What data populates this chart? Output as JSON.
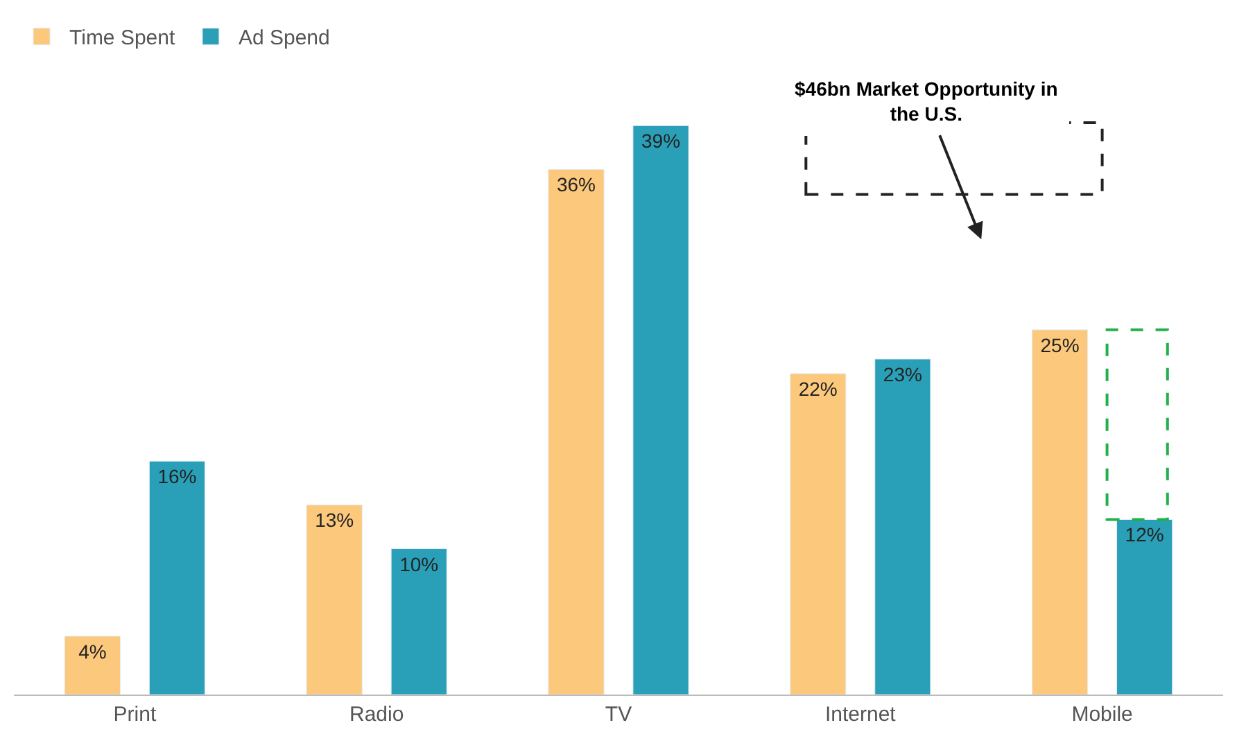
{
  "chart_data": {
    "type": "bar",
    "categories": [
      "Print",
      "Radio",
      "TV",
      "Internet",
      "Mobile"
    ],
    "series": [
      {
        "name": "Time Spent",
        "color": "#fbc87c",
        "values": [
          4,
          13,
          36,
          22,
          25
        ],
        "value_labels": [
          "4%",
          "13%",
          "36%",
          "22%",
          "25%"
        ]
      },
      {
        "name": "Ad Spend",
        "color": "#2aa0b8",
        "values": [
          16,
          10,
          39,
          23,
          12
        ],
        "value_labels": [
          "16%",
          "10%",
          "39%",
          "23%",
          "12%"
        ]
      }
    ],
    "annotations": [
      "$46bn Market Opportunity in the U.S."
    ],
    "legend": "top left"
  }
}
